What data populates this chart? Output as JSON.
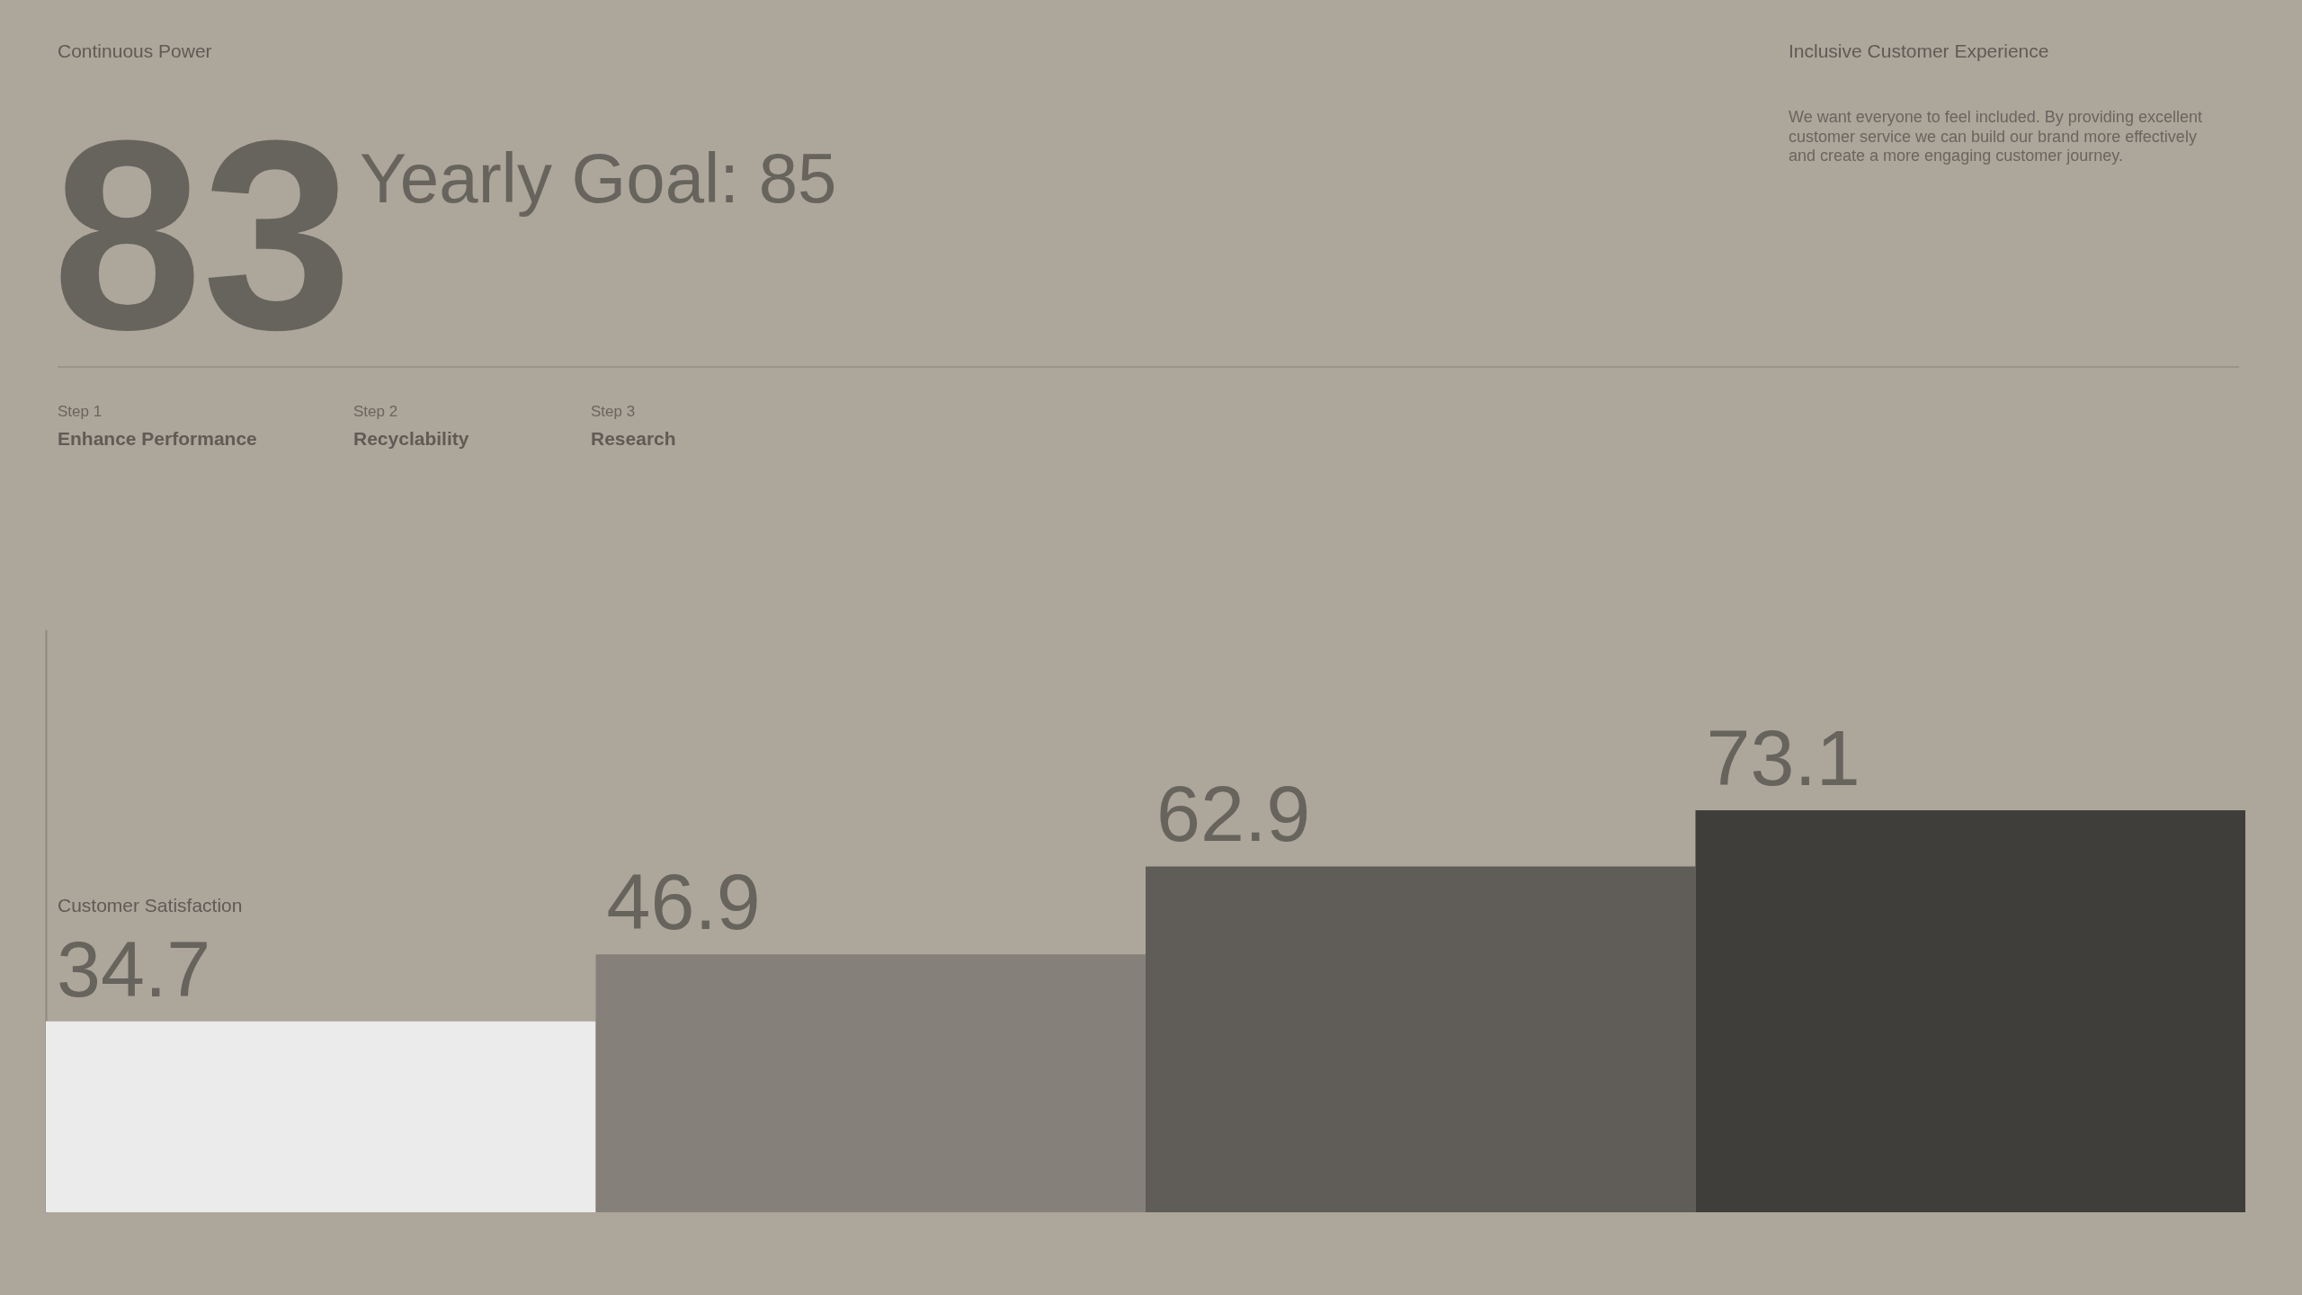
{
  "chart_data": {
    "type": "bar",
    "title": "Continuous Power",
    "ylabel": "Customer Satisfaction",
    "categories": [
      null,
      null,
      null,
      null
    ],
    "values": [
      34.7,
      46.9,
      62.9,
      73.1
    ],
    "colors": [
      "#ebebeb",
      "#858079",
      "#605c57",
      "#403e3a"
    ],
    "data_labels": true,
    "tick_labels": false,
    "grid": false,
    "legend": false,
    "annotations": [
      "83",
      "Yearly Goal: 85",
      "Inclusive Customer Experience",
      "We want everyone to feel included. By providing excellent customer service we can build our brand more effectively and create a more engaging customer journey.",
      "Step 1",
      "Enhance Performance",
      "Step 2",
      "Recyclability",
      "Step 3",
      "Research"
    ]
  }
}
